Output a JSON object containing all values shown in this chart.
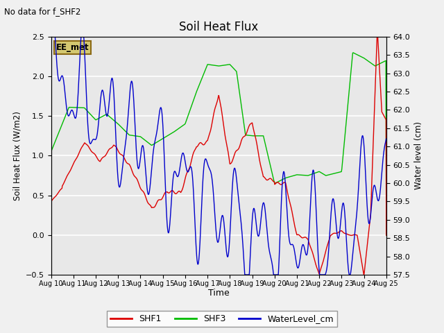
{
  "title": "Soil Heat Flux",
  "no_data_text": "No data for f_SHF2",
  "xlabel": "Time",
  "ylabel_left": "Soil Heat Flux (W/m2)",
  "ylabel_right": "Water level (cm)",
  "ylim_left": [
    -0.5,
    2.5
  ],
  "ylim_right": [
    57.5,
    64.0
  ],
  "yticks_left": [
    -0.5,
    0.0,
    0.5,
    1.0,
    1.5,
    2.0,
    2.5
  ],
  "yticks_right": [
    57.5,
    58.0,
    58.5,
    59.0,
    59.5,
    60.0,
    60.5,
    61.0,
    61.5,
    62.0,
    62.5,
    63.0,
    63.5,
    64.0
  ],
  "xtick_labels": [
    "Aug 10",
    "Aug 11",
    "Aug 12",
    "Aug 13",
    "Aug 14",
    "Aug 15",
    "Aug 16",
    "Aug 17",
    "Aug 18",
    "Aug 19",
    "Aug 20",
    "Aug 21",
    "Aug 22",
    "Aug 23",
    "Aug 24",
    "Aug 25"
  ],
  "ee_met_label": "EE_met",
  "ee_met_color": "#d4c870",
  "ee_met_border": "#8B6914",
  "background_color": "#e8e8e8",
  "grid_color": "#ffffff",
  "shf1_color": "#dd0000",
  "shf3_color": "#00bb00",
  "water_color": "#0000cc",
  "legend_entries": [
    "SHF1",
    "SHF3",
    "WaterLevel_cm"
  ],
  "fig_bg": "#f0f0f0"
}
